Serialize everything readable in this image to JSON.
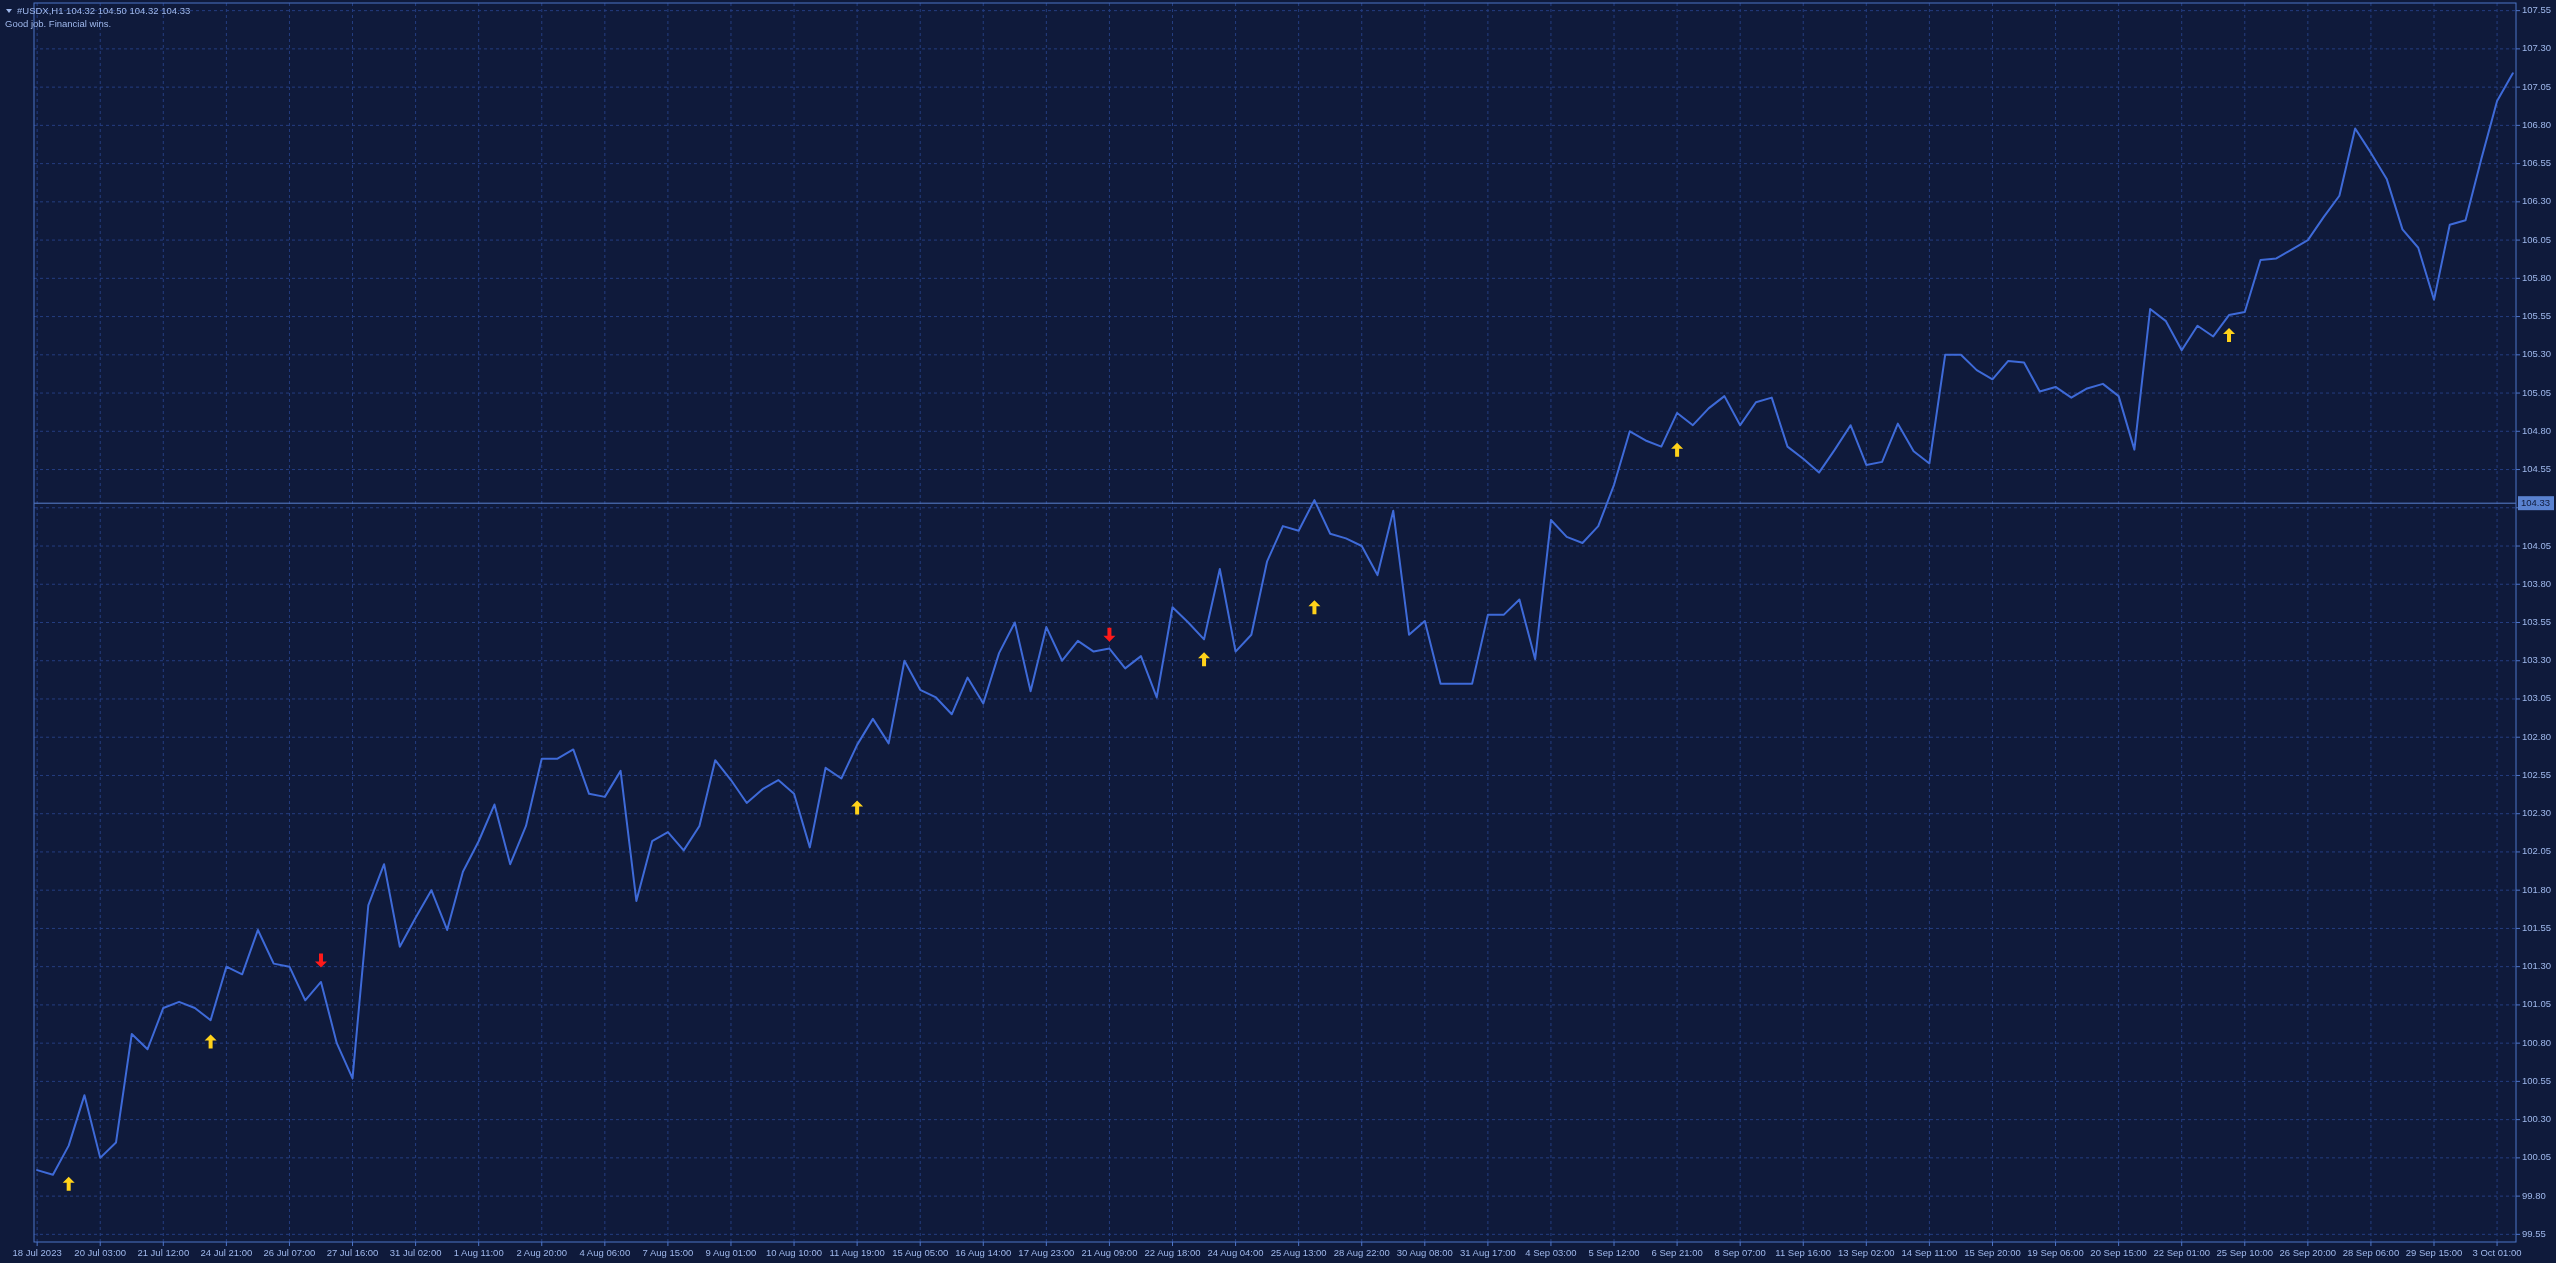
{
  "chart_data": {
    "type": "line",
    "title": "#USDX,H1 104.32 104.50 104.32 104.33",
    "subtitle": "Good job. Financial wins.",
    "categories": [
      "18 Jul 2023",
      null,
      null,
      null,
      "20 Jul 03:00",
      null,
      null,
      null,
      "21 Jul 12:00",
      null,
      null,
      null,
      "24 Jul 21:00",
      null,
      null,
      null,
      "26 Jul 07:00",
      null,
      null,
      null,
      "27 Jul 16:00",
      null,
      null,
      null,
      "31 Jul 02:00",
      null,
      null,
      null,
      "1 Aug 11:00",
      null,
      null,
      null,
      "2 Aug 20:00",
      null,
      null,
      null,
      "4 Aug 06:00",
      null,
      null,
      null,
      "7 Aug 15:00",
      null,
      null,
      null,
      "9 Aug 01:00",
      null,
      null,
      null,
      "10 Aug 10:00",
      null,
      null,
      null,
      "11 Aug 19:00",
      null,
      null,
      null,
      "15 Aug 05:00",
      null,
      null,
      null,
      "16 Aug 14:00",
      null,
      null,
      null,
      "17 Aug 23:00",
      null,
      null,
      null,
      "21 Aug 09:00",
      null,
      null,
      null,
      "22 Aug 18:00",
      null,
      null,
      null,
      "24 Aug 04:00",
      null,
      null,
      null,
      "25 Aug 13:00",
      null,
      null,
      null,
      "28 Aug 22:00",
      null,
      null,
      null,
      "30 Aug 08:00",
      null,
      null,
      null,
      "31 Aug 17:00",
      null,
      null,
      null,
      "4 Sep 03:00",
      null,
      null,
      null,
      "5 Sep 12:00",
      null,
      null,
      null,
      "6 Sep 21:00",
      null,
      null,
      null,
      "8 Sep 07:00",
      null,
      null,
      null,
      "11 Sep 16:00",
      null,
      null,
      null,
      "13 Sep 02:00",
      null,
      null,
      null,
      "14 Sep 11:00",
      null,
      null,
      null,
      "15 Sep 20:00",
      null,
      null,
      null,
      "19 Sep 06:00",
      null,
      null,
      null,
      "20 Sep 15:00",
      null,
      null,
      null,
      "22 Sep 01:00",
      null,
      null,
      null,
      "25 Sep 10:00",
      null,
      null,
      null,
      "26 Sep 20:00",
      null,
      null,
      null,
      "28 Sep 06:00",
      null,
      null,
      null,
      "29 Sep 15:00",
      null,
      null,
      null,
      "3 Oct 01:00",
      null
    ],
    "ylim": [
      99.5,
      107.6
    ],
    "yticks": [
      {
        "value": 99.55,
        "label": "99.55"
      },
      {
        "value": 99.8,
        "label": "99.80"
      },
      {
        "value": 100.05,
        "label": "100.05"
      },
      {
        "value": 100.3,
        "label": "100.30"
      },
      {
        "value": 100.55,
        "label": "100.55"
      },
      {
        "value": 100.8,
        "label": "100.80"
      },
      {
        "value": 101.05,
        "label": "101.05"
      },
      {
        "value": 101.3,
        "label": "101.30"
      },
      {
        "value": 101.55,
        "label": "101.55"
      },
      {
        "value": 101.8,
        "label": "101.80"
      },
      {
        "value": 102.05,
        "label": "102.05"
      },
      {
        "value": 102.3,
        "label": "102.30"
      },
      {
        "value": 102.55,
        "label": "102.55"
      },
      {
        "value": 102.8,
        "label": "102.80"
      },
      {
        "value": 103.05,
        "label": "103.05"
      },
      {
        "value": 103.3,
        "label": "103.30"
      },
      {
        "value": 103.55,
        "label": "103.55"
      },
      {
        "value": 103.8,
        "label": "103.80"
      },
      {
        "value": 104.05,
        "label": "104.05"
      },
      {
        "value": 104.3,
        "label": null
      },
      {
        "value": 104.55,
        "label": "104.55"
      },
      {
        "value": 104.8,
        "label": "104.80"
      },
      {
        "value": 105.05,
        "label": "105.05"
      },
      {
        "value": 105.3,
        "label": "105.30"
      },
      {
        "value": 105.55,
        "label": "105.55"
      },
      {
        "value": 105.8,
        "label": "105.80"
      },
      {
        "value": 106.05,
        "label": "106.05"
      },
      {
        "value": 106.3,
        "label": "106.30"
      },
      {
        "value": 106.55,
        "label": "106.55"
      },
      {
        "value": 106.8,
        "label": "106.80"
      },
      {
        "value": 107.05,
        "label": "107.05"
      },
      {
        "value": 107.3,
        "label": "107.30"
      },
      {
        "value": 107.55,
        "label": "107.55"
      }
    ],
    "grid": true,
    "ref_lines": [
      {
        "axis": "y",
        "value": 104.33,
        "label": "104.33",
        "color": "#5a82d0"
      }
    ],
    "series": [
      {
        "color": "#3e6ad8",
        "values": [
          99.97,
          99.94,
          100.13,
          100.46,
          100.05,
          100.15,
          100.86,
          100.76,
          101.03,
          101.07,
          101.03,
          100.95,
          101.3,
          101.25,
          101.54,
          101.32,
          101.3,
          101.08,
          101.2,
          100.8,
          100.57,
          101.7,
          101.97,
          101.43,
          101.62,
          101.8,
          101.54,
          101.92,
          102.12,
          102.36,
          101.97,
          102.22,
          102.66,
          102.66,
          102.72,
          102.43,
          102.41,
          102.58,
          101.73,
          102.12,
          102.18,
          102.06,
          102.22,
          102.65,
          102.52,
          102.37,
          102.46,
          102.52,
          102.43,
          102.08,
          102.6,
          102.53,
          102.75,
          102.92,
          102.76,
          103.3,
          103.11,
          103.06,
          102.95,
          103.19,
          103.02,
          103.35,
          103.55,
          103.1,
          103.52,
          103.3,
          103.43,
          103.36,
          103.38,
          103.25,
          103.33,
          103.06,
          103.65,
          103.55,
          103.44,
          103.9,
          103.36,
          103.47,
          103.95,
          104.18,
          104.15,
          104.35,
          104.13,
          104.1,
          104.05,
          103.86,
          104.28,
          103.47,
          103.56,
          103.15,
          103.15,
          103.15,
          103.6,
          103.6,
          103.7,
          103.31,
          104.22,
          104.11,
          104.07,
          104.18,
          104.45,
          104.8,
          104.74,
          104.7,
          104.92,
          104.84,
          104.95,
          105.03,
          104.84,
          104.99,
          105.02,
          104.7,
          104.62,
          104.53,
          104.68,
          104.84,
          104.58,
          104.6,
          104.85,
          104.67,
          104.59,
          105.3,
          105.3,
          105.2,
          105.14,
          105.26,
          105.25,
          105.06,
          105.09,
          105.02,
          105.08,
          105.11,
          105.03,
          104.68,
          105.6,
          105.52,
          105.33,
          105.49,
          105.42,
          105.56,
          105.58,
          105.92,
          105.93,
          105.99,
          106.05,
          106.2,
          106.34,
          106.78,
          106.62,
          106.45,
          106.12,
          106.0,
          105.66,
          106.15,
          106.18,
          106.58,
          106.96,
          107.14
        ]
      },
      {
        "type": "scatter",
        "color": "#ffd21a",
        "marker": "triangle",
        "values": [
          null,
          null,
          99.88,
          null,
          null,
          null,
          null,
          null,
          null,
          null,
          null,
          100.81,
          null,
          null,
          null,
          null,
          null,
          null,
          null,
          null,
          null,
          null,
          null,
          null,
          null,
          null,
          null,
          null,
          null,
          null,
          null,
          null,
          null,
          null,
          null,
          null,
          null,
          null,
          null,
          null,
          null,
          null,
          null,
          null,
          null,
          null,
          null,
          null,
          null,
          null,
          null,
          null,
          102.34,
          null,
          null,
          null,
          null,
          null,
          null,
          null,
          null,
          null,
          null,
          null,
          null,
          null,
          null,
          null,
          null,
          null,
          null,
          null,
          null,
          null,
          103.31,
          null,
          null,
          null,
          null,
          null,
          null,
          103.65,
          null,
          null,
          null,
          null,
          null,
          null,
          null,
          null,
          null,
          null,
          null,
          null,
          null,
          null,
          null,
          null,
          null,
          null,
          null,
          null,
          null,
          null,
          104.68,
          null,
          null,
          null,
          null,
          null,
          null,
          null,
          null,
          null,
          null,
          null,
          null,
          null,
          null,
          null,
          null,
          null,
          null,
          null,
          null,
          null,
          null,
          null,
          null,
          null,
          null,
          null,
          null,
          null,
          null,
          null,
          null,
          null,
          null,
          105.43,
          null,
          null,
          null,
          null,
          null,
          null,
          null,
          null,
          null,
          null,
          null,
          null,
          null,
          null,
          null,
          null,
          null,
          null
        ]
      },
      {
        "type": "scatter",
        "color": "#ff1a1a",
        "marker": "triangle",
        "values": [
          null,
          null,
          null,
          null,
          null,
          null,
          null,
          null,
          null,
          null,
          null,
          null,
          null,
          null,
          null,
          null,
          null,
          null,
          101.34,
          null,
          null,
          null,
          null,
          null,
          null,
          null,
          null,
          null,
          null,
          null,
          null,
          null,
          null,
          null,
          null,
          null,
          null,
          null,
          null,
          null,
          null,
          null,
          null,
          null,
          null,
          null,
          null,
          null,
          null,
          null,
          null,
          null,
          null,
          null,
          null,
          null,
          null,
          null,
          null,
          null,
          null,
          null,
          null,
          null,
          null,
          null,
          null,
          null,
          103.47,
          null,
          null,
          null,
          null,
          null,
          null,
          null,
          null,
          null,
          null,
          null,
          null,
          null,
          null,
          null,
          null,
          null,
          null,
          null,
          null,
          null,
          null,
          null,
          null,
          null,
          null,
          null,
          null,
          null,
          null,
          null,
          null,
          null,
          null,
          null,
          null,
          null,
          null,
          null,
          null,
          null,
          null,
          null,
          null,
          null,
          null,
          null,
          null,
          null,
          null,
          null,
          null,
          null,
          null,
          null,
          null,
          null,
          null,
          null,
          null,
          null,
          null,
          null,
          null,
          null,
          null,
          null,
          null,
          null,
          null,
          null,
          null,
          null,
          null,
          null,
          null,
          null,
          null,
          null,
          null,
          null,
          null,
          null,
          null,
          null,
          null,
          null,
          null,
          null
        ]
      }
    ]
  }
}
